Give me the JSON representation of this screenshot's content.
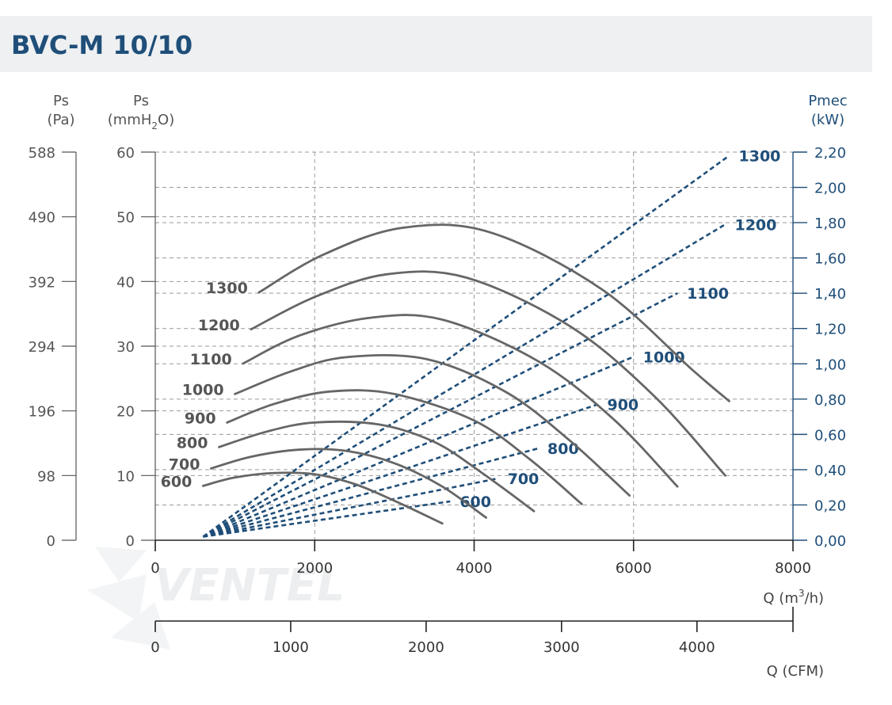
{
  "title": "BVC-M 10/10",
  "watermark": "VENTEL",
  "colors": {
    "title": "#1f4e79",
    "pressure_curve": "#666666",
    "power_curve": "#1f4e79",
    "grid": "#9a9a9a",
    "axis": "#555555"
  },
  "chart_data": {
    "type": "line",
    "x_axis": {
      "label": "Q (m3/h)",
      "label_main": "Q (m",
      "label_sup": "3",
      "label_end": "/h)",
      "range": [
        0,
        8000
      ],
      "ticks": [
        "0",
        "2000",
        "4000",
        "6000",
        "8000"
      ]
    },
    "cfm_axis": {
      "label": "Q (CFM)",
      "range": [
        0,
        4709
      ],
      "ticks": [
        "0",
        "1000",
        "2000",
        "3000",
        "4000"
      ]
    },
    "y_axis_left": {
      "label": "Ps",
      "unit_pre": "(mmH",
      "unit_sub": "2",
      "unit_post": "O)",
      "range": [
        0,
        60
      ],
      "ticks": [
        "0",
        "10",
        "20",
        "30",
        "40",
        "50",
        "60"
      ]
    },
    "y_axis_pa": {
      "label": "Ps",
      "unit": "(Pa)",
      "ticks": [
        "0",
        "98",
        "196",
        "294",
        "392",
        "490",
        "588"
      ]
    },
    "y_axis_right": {
      "label": "Pmec",
      "unit": "(kW)",
      "range": [
        0,
        2.2
      ],
      "ticks": [
        "0,00",
        "0,20",
        "0,40",
        "0,60",
        "0,80",
        "1,00",
        "1,20",
        "1,40",
        "1,60",
        "1,80",
        "2,00",
        "2,20"
      ]
    },
    "pressure_series": [
      {
        "name": "600",
        "x": [
          600,
          1000,
          1500,
          2000,
          2500,
          3000,
          3600
        ],
        "y": [
          8.4,
          9.7,
          10.4,
          10.2,
          8.7,
          6.1,
          2.6
        ]
      },
      {
        "name": "700",
        "x": [
          700,
          1200,
          1800,
          2400,
          3000,
          3600,
          4150
        ],
        "y": [
          11.1,
          12.9,
          14.0,
          13.8,
          11.9,
          8.3,
          3.5
        ]
      },
      {
        "name": "800",
        "x": [
          800,
          1400,
          2000,
          2800,
          3500,
          4100,
          4750
        ],
        "y": [
          14.4,
          16.8,
          18.2,
          17.9,
          15.2,
          10.4,
          4.5
        ]
      },
      {
        "name": "900",
        "x": [
          900,
          1500,
          2200,
          3000,
          4000,
          4700,
          5350
        ],
        "y": [
          18.2,
          21.1,
          23.0,
          22.6,
          18.5,
          12.5,
          5.6
        ]
      },
      {
        "name": "1000",
        "x": [
          1000,
          1700,
          2400,
          3400,
          4400,
          5200,
          5950
        ],
        "y": [
          22.6,
          26.1,
          28.3,
          28.0,
          22.9,
          15.4,
          6.9
        ]
      },
      {
        "name": "1100",
        "x": [
          1100,
          1800,
          2700,
          3600,
          4800,
          5750,
          6550
        ],
        "y": [
          27.3,
          31.6,
          34.4,
          34.1,
          27.7,
          18.7,
          8.3
        ]
      },
      {
        "name": "1200",
        "x": [
          1200,
          2000,
          2900,
          3900,
          5200,
          6250,
          7150
        ],
        "y": [
          32.6,
          37.6,
          41.1,
          40.6,
          33.1,
          22.4,
          10.0
        ]
      },
      {
        "name": "1300",
        "x": [
          1300,
          2100,
          3100,
          4200,
          5600,
          6750,
          7200
        ],
        "y": [
          38.3,
          44.1,
          48.3,
          47.6,
          38.8,
          26.2,
          21.5
        ]
      }
    ],
    "power_series": [
      {
        "name": "600",
        "x": [
          600,
          3700
        ],
        "y": [
          0.02,
          0.22
        ]
      },
      {
        "name": "700",
        "x": [
          600,
          4300
        ],
        "y": [
          0.02,
          0.35
        ]
      },
      {
        "name": "800",
        "x": [
          600,
          4800
        ],
        "y": [
          0.02,
          0.52
        ]
      },
      {
        "name": "900",
        "x": [
          600,
          5550
        ],
        "y": [
          0.02,
          0.77
        ]
      },
      {
        "name": "1000",
        "x": [
          600,
          6000
        ],
        "y": [
          0.02,
          1.04
        ]
      },
      {
        "name": "1100",
        "x": [
          600,
          6550
        ],
        "y": [
          0.02,
          1.4
        ]
      },
      {
        "name": "1200",
        "x": [
          600,
          7150
        ],
        "y": [
          0.02,
          1.79
        ]
      },
      {
        "name": "1300",
        "x": [
          600,
          7200
        ],
        "y": [
          0.02,
          2.18
        ]
      }
    ],
    "grid": true
  }
}
